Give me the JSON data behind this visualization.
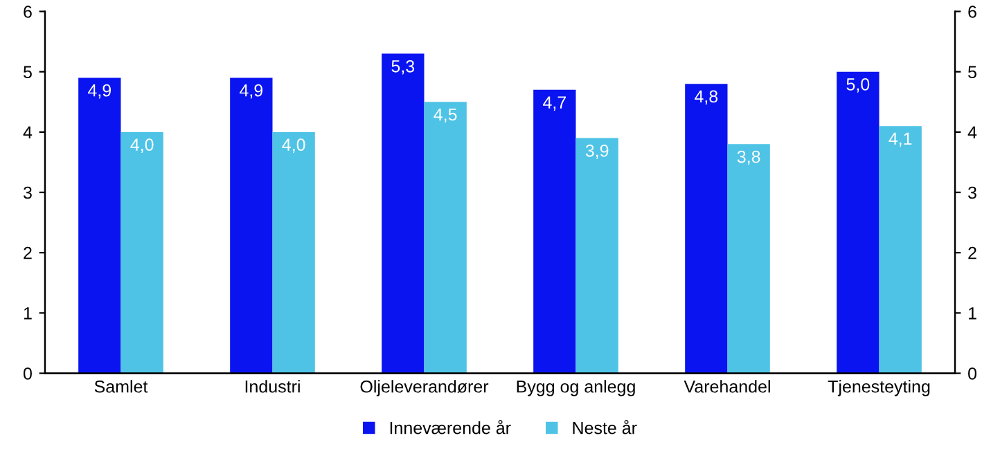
{
  "chart_data": {
    "type": "bar",
    "categories": [
      "Samlet",
      "Industri",
      "Oljeleverandører",
      "Bygg og anlegg",
      "Varehandel",
      "Tjenesteyting"
    ],
    "series": [
      {
        "name": "Inneværende år",
        "color": "#0a14f0",
        "values": [
          4.9,
          4.9,
          5.3,
          4.7,
          4.8,
          5.0
        ],
        "value_labels": [
          "4,9",
          "4,9",
          "5,3",
          "4,7",
          "4,8",
          "5,0"
        ]
      },
      {
        "name": "Neste år",
        "color": "#4ec3e6",
        "values": [
          4.0,
          4.0,
          4.5,
          3.9,
          3.8,
          4.1
        ],
        "value_labels": [
          "4,0",
          "4,0",
          "4,5",
          "3,9",
          "3,8",
          "4,1"
        ]
      }
    ],
    "ylim": [
      0,
      6
    ],
    "yticks": [
      0,
      1,
      2,
      3,
      4,
      5,
      6
    ],
    "y2lim": [
      0,
      6
    ],
    "y2ticks": [
      0,
      1,
      2,
      3,
      4,
      5,
      6
    ],
    "grid": false,
    "legend": "bottom"
  }
}
